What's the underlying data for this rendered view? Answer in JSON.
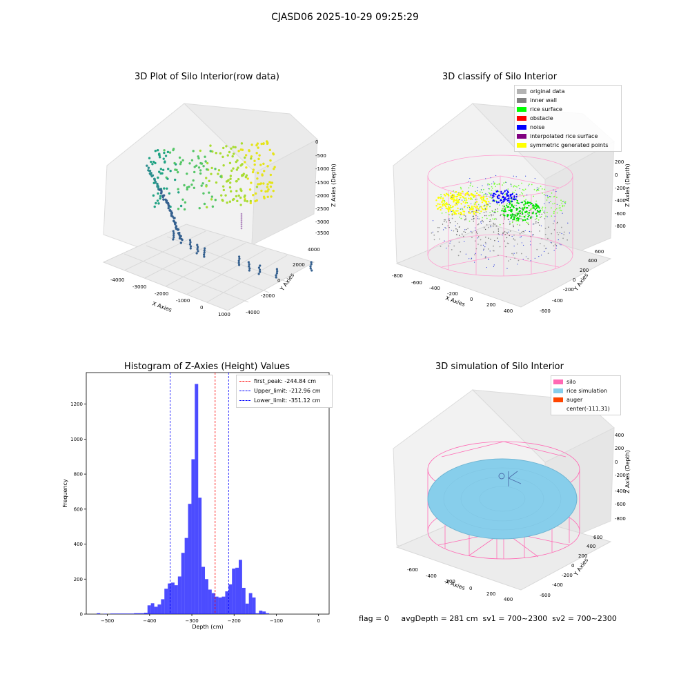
{
  "suptitle": "CJASD06 2025-10-29 09:25:29",
  "footer": "flag = 0     avgDepth = 281 cm  sv1 = 700~2300  sv2 = 700~2300",
  "panels": {
    "raw": {
      "title": "3D Plot of Silo Interior(row data)",
      "xlabel": "X Axies",
      "ylabel": "Y Axies",
      "zlabel": "Z Axies (Depth)",
      "xticks": [
        "-4000",
        "-3000",
        "-2000",
        "-1000",
        "0",
        "1000"
      ],
      "yticks": [
        "-4000",
        "-2000",
        "0",
        "2000",
        "4000"
      ],
      "zticks": [
        "0",
        "-500",
        "-1000",
        "-1500",
        "-2000",
        "-2500",
        "-3000",
        "-3500"
      ]
    },
    "classify": {
      "title": "3D classify of Silo Interior",
      "xlabel": "X Axies",
      "ylabel": "Y Axies",
      "zlabel": "Z Axies (Depth)",
      "xticks": [
        "-800",
        "-600",
        "-400",
        "-200",
        "0",
        "200",
        "400"
      ],
      "yticks": [
        "-600",
        "-400",
        "-200",
        "0",
        "200",
        "400",
        "600"
      ],
      "zticks": [
        "200",
        "0",
        "-200",
        "-400",
        "-600",
        "-800"
      ],
      "legend": [
        {
          "label": "original data",
          "color": "#b3b3b3"
        },
        {
          "label": "inner wall",
          "color": "#808080"
        },
        {
          "label": "rice surface",
          "color": "#00ff00"
        },
        {
          "label": "obstacle",
          "color": "#ff0000"
        },
        {
          "label": "noise",
          "color": "#0000ff"
        },
        {
          "label": "interpolated rice surface",
          "color": "#800080"
        },
        {
          "label": "symmetric generated points",
          "color": "#ffff00"
        }
      ]
    },
    "simulation": {
      "title": "3D simulation of Silo Interior",
      "xlabel": "X Axies",
      "ylabel": "Y Axies",
      "zlabel": "Z Axies (Depth)",
      "xticks": [
        "-600",
        "-400",
        "-200",
        "0",
        "200",
        "400"
      ],
      "yticks": [
        "-600",
        "-400",
        "-200",
        "0",
        "200",
        "400",
        "600"
      ],
      "zticks": [
        "400",
        "200",
        "0",
        "-200",
        "-400",
        "-600",
        "-800"
      ],
      "legend": [
        {
          "label": "silo",
          "color": "#ff69b4"
        },
        {
          "label": "rice simulation",
          "color": "#87ceeb"
        },
        {
          "label": "auger",
          "color": "#ff4500"
        },
        {
          "label": "center(-111,31)",
          "color": ""
        }
      ]
    }
  },
  "chart_data": {
    "type": "bar",
    "title": "Histogram of Z-Axies (Height) Values",
    "xlabel": "Depth (cm)",
    "ylabel": "Frequency",
    "xlim": [
      -550,
      25
    ],
    "ylim": [
      0,
      1380
    ],
    "xticks": [
      -500,
      -400,
      -300,
      -200,
      -100,
      0
    ],
    "yticks": [
      0,
      200,
      400,
      600,
      800,
      1000,
      1200
    ],
    "bin_width": 8,
    "bins": [
      {
        "x": -525,
        "v": 5
      },
      {
        "x": -517,
        "v": 0
      },
      {
        "x": -509,
        "v": 2
      },
      {
        "x": -501,
        "v": 0
      },
      {
        "x": -493,
        "v": 3
      },
      {
        "x": -485,
        "v": 3
      },
      {
        "x": -477,
        "v": 3
      },
      {
        "x": -469,
        "v": 3
      },
      {
        "x": -461,
        "v": 3
      },
      {
        "x": -453,
        "v": 3
      },
      {
        "x": -445,
        "v": 3
      },
      {
        "x": -437,
        "v": 5
      },
      {
        "x": -429,
        "v": 5
      },
      {
        "x": -421,
        "v": 5
      },
      {
        "x": -413,
        "v": 8
      },
      {
        "x": -405,
        "v": 50
      },
      {
        "x": -397,
        "v": 62
      },
      {
        "x": -389,
        "v": 42
      },
      {
        "x": -381,
        "v": 55
      },
      {
        "x": -373,
        "v": 85
      },
      {
        "x": -365,
        "v": 145
      },
      {
        "x": -357,
        "v": 175
      },
      {
        "x": -349,
        "v": 180
      },
      {
        "x": -341,
        "v": 165
      },
      {
        "x": -333,
        "v": 215
      },
      {
        "x": -325,
        "v": 350
      },
      {
        "x": -317,
        "v": 435
      },
      {
        "x": -309,
        "v": 630
      },
      {
        "x": -301,
        "v": 885
      },
      {
        "x": -293,
        "v": 1315
      },
      {
        "x": -285,
        "v": 665
      },
      {
        "x": -277,
        "v": 270
      },
      {
        "x": -269,
        "v": 200
      },
      {
        "x": -261,
        "v": 140
      },
      {
        "x": -253,
        "v": 120
      },
      {
        "x": -245,
        "v": 100
      },
      {
        "x": -237,
        "v": 95
      },
      {
        "x": -229,
        "v": 100
      },
      {
        "x": -221,
        "v": 130
      },
      {
        "x": -213,
        "v": 170
      },
      {
        "x": -205,
        "v": 260
      },
      {
        "x": -197,
        "v": 265
      },
      {
        "x": -189,
        "v": 310
      },
      {
        "x": -181,
        "v": 150
      },
      {
        "x": -173,
        "v": 60
      },
      {
        "x": -165,
        "v": 120
      },
      {
        "x": -157,
        "v": 95
      },
      {
        "x": -149,
        "v": 5
      },
      {
        "x": -141,
        "v": 20
      },
      {
        "x": -133,
        "v": 15
      },
      {
        "x": -125,
        "v": 5
      }
    ],
    "vlines": [
      {
        "label": "first_peak: -244.84 cm",
        "x": -244.84,
        "color": "#ff0000"
      },
      {
        "label": "Upper_limit: -212.96 cm",
        "x": -212.96,
        "color": "#0000ff"
      },
      {
        "label": "Lower_limit: -351.12 cm",
        "x": -351.12,
        "color": "#0000ff"
      }
    ]
  }
}
